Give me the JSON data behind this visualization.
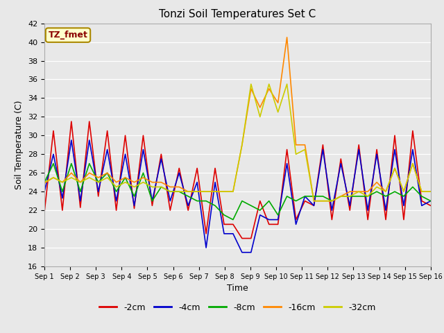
{
  "title": "Tonzi Soil Temperatures Set C",
  "xlabel": "Time",
  "ylabel": "Soil Temperature (C)",
  "ylim": [
    16,
    42
  ],
  "yticks": [
    16,
    18,
    20,
    22,
    24,
    26,
    28,
    30,
    32,
    34,
    36,
    38,
    40,
    42
  ],
  "annotation_text": "TZ_fmet",
  "annotation_color": "#8B0000",
  "annotation_bg": "#FFFFCC",
  "annotation_border": "#AA8800",
  "fig_bg": "#E8E8E8",
  "plot_bg": "#E8E8E8",
  "series_order": [
    "-2cm",
    "-4cm",
    "-8cm",
    "-16cm",
    "-32cm"
  ],
  "series": {
    "-2cm": {
      "color": "#DD0000",
      "lw": 1.2
    },
    "-4cm": {
      "color": "#0000CC",
      "lw": 1.2
    },
    "-8cm": {
      "color": "#00AA00",
      "lw": 1.2
    },
    "-16cm": {
      "color": "#FF8800",
      "lw": 1.2
    },
    "-32cm": {
      "color": "#CCCC00",
      "lw": 1.2
    }
  },
  "x_labels": [
    "Sep 1",
    "Sep 2",
    "Sep 3",
    "Sep 4",
    "Sep 5",
    "Sep 6",
    "Sep 7",
    "Sep 8",
    "Sep 9",
    "Sep 10",
    "Sep 11",
    "Sep 12",
    "Sep 13",
    "Sep 14",
    "Sep 15",
    "Sep 16"
  ],
  "data": {
    "-2cm": [
      21.8,
      30.5,
      22.0,
      31.5,
      22.3,
      31.5,
      23.5,
      30.5,
      22.0,
      30.0,
      22.2,
      30.0,
      22.5,
      28.0,
      22.0,
      26.5,
      22.0,
      26.5,
      19.5,
      26.5,
      20.5,
      20.5,
      19.0,
      19.0,
      23.0,
      20.5,
      20.5,
      28.5,
      21.0,
      23.0,
      22.5,
      29.0,
      21.0,
      27.5,
      22.0,
      29.0,
      21.0,
      28.5,
      21.0,
      30.0,
      21.0,
      30.5,
      23.0,
      22.5
    ],
    "-4cm": [
      24.0,
      28.0,
      23.3,
      29.5,
      23.0,
      29.5,
      24.0,
      28.5,
      23.0,
      28.0,
      22.5,
      28.5,
      23.0,
      27.5,
      23.0,
      26.0,
      22.5,
      25.0,
      18.0,
      25.0,
      19.5,
      19.5,
      17.5,
      17.5,
      21.5,
      21.0,
      21.0,
      27.0,
      20.5,
      23.5,
      22.5,
      28.5,
      22.0,
      27.0,
      22.5,
      28.5,
      22.0,
      28.0,
      22.0,
      28.5,
      22.5,
      28.5,
      22.5,
      23.0
    ],
    "-8cm": [
      25.0,
      27.0,
      24.0,
      27.0,
      24.0,
      27.0,
      25.0,
      26.0,
      24.0,
      25.5,
      23.5,
      26.0,
      23.0,
      24.5,
      24.0,
      24.0,
      23.5,
      23.0,
      23.0,
      22.5,
      21.5,
      21.0,
      23.0,
      22.5,
      22.0,
      23.0,
      21.5,
      23.5,
      23.0,
      23.5,
      23.5,
      23.5,
      23.0,
      23.5,
      23.5,
      23.5,
      23.5,
      24.0,
      23.5,
      24.0,
      23.5,
      24.5,
      23.5,
      23.0
    ],
    "-16cm": [
      24.9,
      25.5,
      25.0,
      26.0,
      25.0,
      26.0,
      25.5,
      26.0,
      25.0,
      25.5,
      25.0,
      25.5,
      25.0,
      25.0,
      24.5,
      24.5,
      24.0,
      24.0,
      24.0,
      24.0,
      24.0,
      24.0,
      29.0,
      35.0,
      33.0,
      35.0,
      33.5,
      40.5,
      29.0,
      29.0,
      23.0,
      23.0,
      23.0,
      23.5,
      24.0,
      24.0,
      24.0,
      25.0,
      24.0,
      26.5,
      24.0,
      27.0,
      24.0,
      24.0
    ],
    "-32cm": [
      25.0,
      25.5,
      25.0,
      25.5,
      25.0,
      25.5,
      25.0,
      25.5,
      24.5,
      25.0,
      24.5,
      25.0,
      24.5,
      24.5,
      24.0,
      24.0,
      24.0,
      24.0,
      24.0,
      24.0,
      24.0,
      24.0,
      29.0,
      35.5,
      32.0,
      35.5,
      32.5,
      35.5,
      28.0,
      28.5,
      23.0,
      23.0,
      23.0,
      23.5,
      23.5,
      24.0,
      23.5,
      24.5,
      24.0,
      26.5,
      24.0,
      27.0,
      24.0,
      24.0
    ]
  }
}
